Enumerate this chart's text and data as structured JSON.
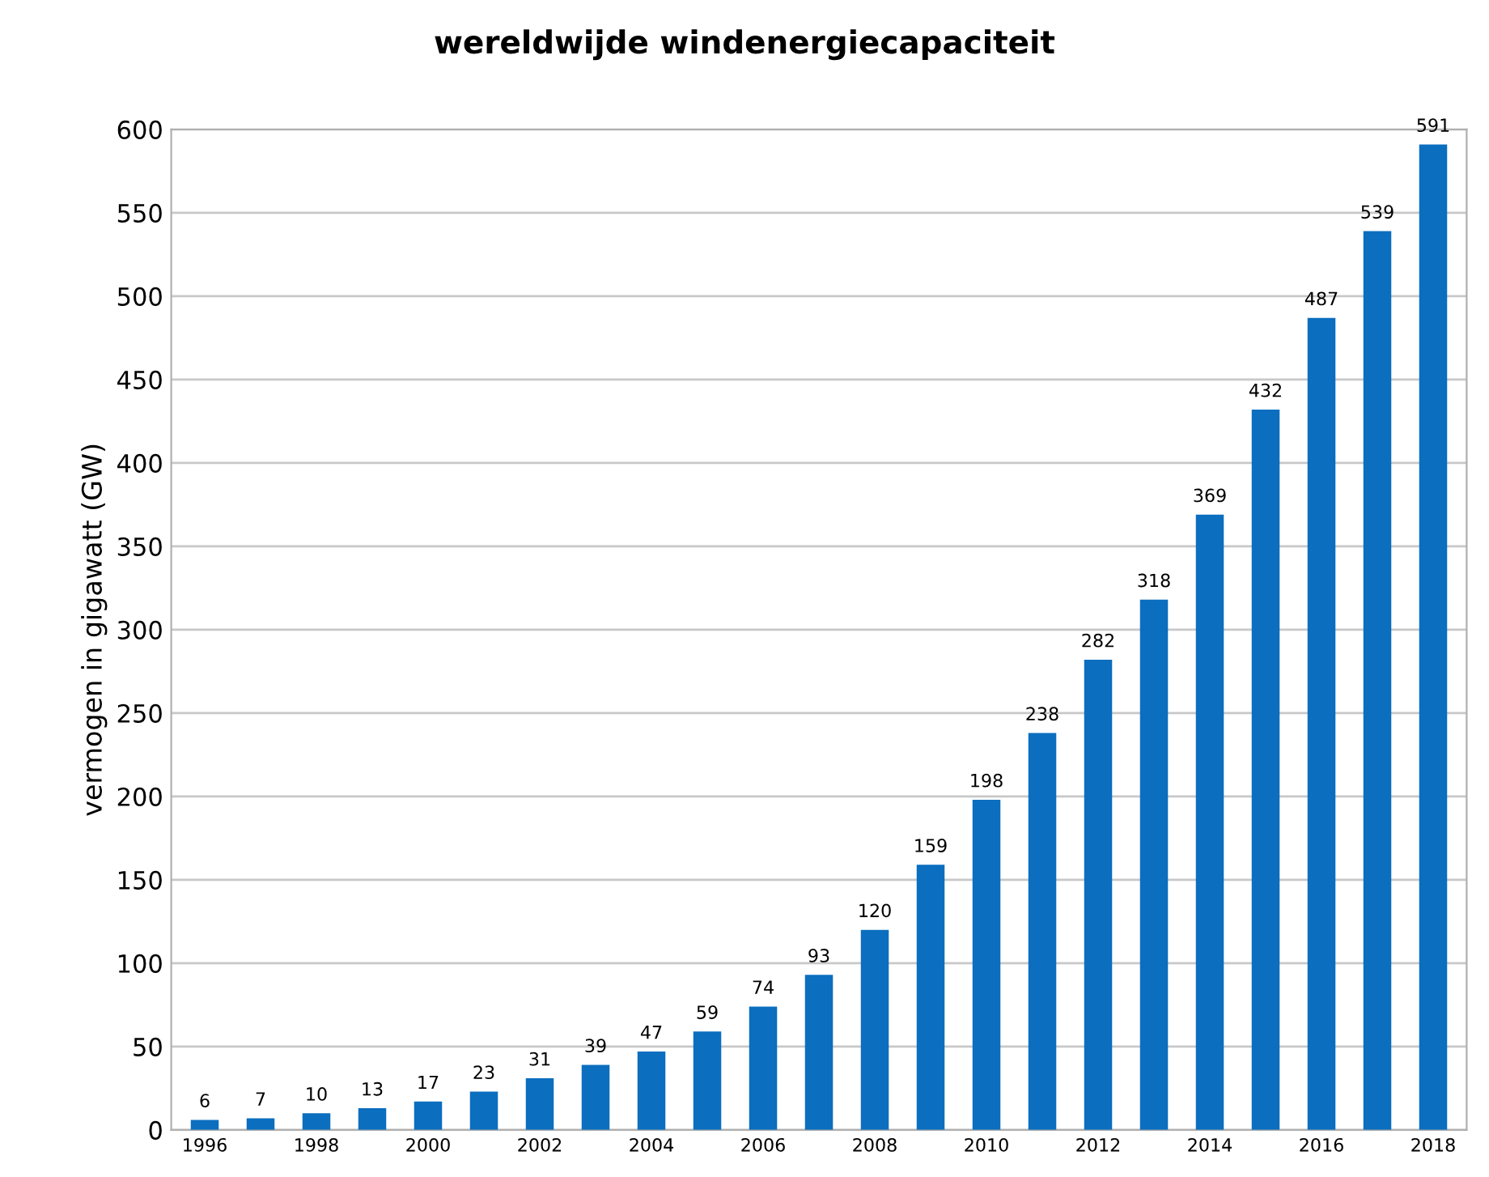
{
  "chart_data": {
    "type": "bar",
    "title": "wereldwijde windenergiecapaciteit",
    "ylabel": "vermogen in gigawatt (GW)",
    "categories": [
      "1996",
      null,
      "1998",
      null,
      "2000",
      null,
      "2002",
      null,
      "2004",
      null,
      "2006",
      null,
      "2008",
      null,
      "2010",
      null,
      "2012",
      null,
      "2014",
      null,
      "2016",
      null,
      "2018"
    ],
    "values": [
      6,
      7,
      10,
      13,
      17,
      23,
      31,
      39,
      47,
      59,
      74,
      93,
      120,
      159,
      198,
      238,
      282,
      318,
      369,
      432,
      487,
      539,
      591
    ],
    "color": "#0b6ebf",
    "ylim": [
      0,
      600
    ],
    "yticks": [
      0,
      50,
      100,
      150,
      200,
      250,
      300,
      350,
      400,
      450,
      500,
      550,
      600
    ],
    "grid": "y",
    "data_labels": true,
    "legend": false
  }
}
